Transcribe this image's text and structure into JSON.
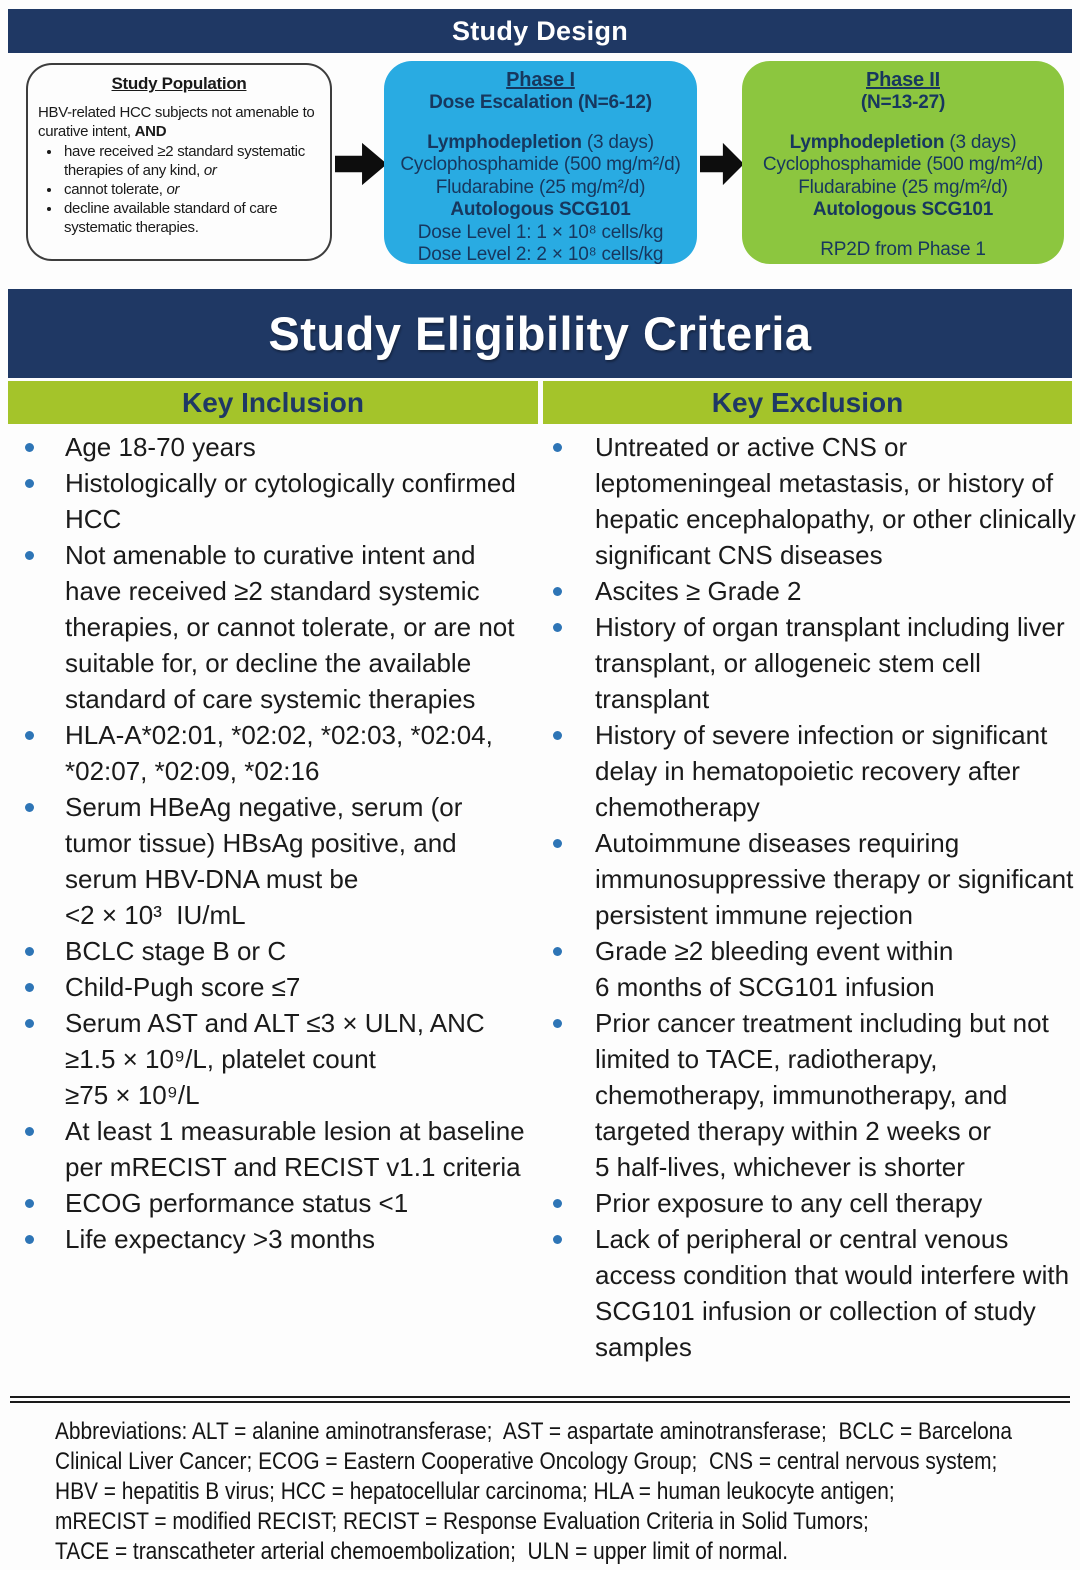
{
  "colors": {
    "navy": "#1F3864",
    "phase1_blue": "#29ABE2",
    "phase2_green": "#8CC63F",
    "header_bar_green": "#A4C42A",
    "bullet_blue": "#2E75B6",
    "box_text_navy": "#17375E",
    "body_text": "#1A1A1A"
  },
  "study_design": {
    "title": "Study Design",
    "population": {
      "title": "Study Population",
      "intro": "HBV-related HCC subjects not amenable to curative intent, ",
      "intro_bold": "AND",
      "bullets": [
        {
          "text": "have received ≥2 standard systematic therapies of any kind, ",
          "italic": "or"
        },
        {
          "text": "cannot tolerate, ",
          "italic": "or"
        },
        {
          "text": "decline available standard of care systematic therapies.",
          "italic": ""
        }
      ]
    },
    "phase1": {
      "title": "Phase I",
      "subtitle": "Dose Escalation (N=6-12)",
      "lymph_bold": "Lymphodepletion",
      "lymph_rest": " (3 days)",
      "cyclo": "Cyclophosphamide (500 mg/m²/d)",
      "fluda": "Fludarabine (25 mg/m²/d)",
      "autologous": "Autologous SCG101",
      "dose1": "Dose Level 1: 1 × 10⁸ cells/kg",
      "dose2": "Dose Level 2: 2 × 10⁸ cells/kg"
    },
    "phase2": {
      "title": "Phase II",
      "subtitle": "(N=13-27)",
      "lymph_bold": "Lymphodepletion",
      "lymph_rest": " (3 days)",
      "cyclo": "Cyclophosphamide (500 mg/m²/d)",
      "fluda": "Fludarabine (25 mg/m²/d)",
      "autologous": "Autologous SCG101",
      "rp2d": "RP2D from Phase 1"
    }
  },
  "eligibility": {
    "title": "Study Eligibility Criteria",
    "inclusion_header": "Key Inclusion",
    "exclusion_header": "Key Exclusion",
    "inclusion": [
      "Age 18-70 years",
      "Histologically or cytologically confirmed HCC",
      "Not amenable to curative intent and have received ≥2 standard systemic therapies, or cannot tolerate, or are not suitable for, or decline the available standard of care systemic therapies",
      "HLA-A*02:01, *02:02, *02:03, *02:04, *02:07, *02:09, *02:16",
      "Serum HBeAg negative, serum (or tumor tissue) HBsAg positive, and serum HBV-DNA must be\n<2 × 10³  IU/mL",
      "BCLC stage B or C",
      "Child-Pugh score ≤7",
      "Serum AST and ALT ≤3 × ULN, ANC\n≥1.5 × 10⁹/L, platelet count\n≥75 × 10⁹/L",
      "At least 1 measurable lesion at baseline per mRECIST and RECIST v1.1 criteria",
      "ECOG performance status <1",
      "Life expectancy >3 months"
    ],
    "exclusion": [
      "Untreated or active CNS or leptomeningeal metastasis, or history of hepatic encephalopathy, or other clinically significant CNS diseases",
      "Ascites ≥ Grade 2",
      "History of organ transplant including liver transplant, or allogeneic stem cell transplant",
      "History of severe infection or significant delay in hematopoietic recovery after chemotherapy",
      "Autoimmune diseases requiring immunosuppressive therapy or significant persistent immune rejection",
      "Grade ≥2 bleeding event within\n6 months of SCG101 infusion",
      "Prior cancer treatment including but not limited to TACE, radiotherapy, chemotherapy, immunotherapy, and targeted therapy within 2 weeks or\n5 half-lives, whichever is shorter",
      "Prior exposure to any cell therapy",
      "Lack of peripheral or central venous access condition that would interfere with SCG101 infusion or collection of study samples"
    ]
  },
  "footer": {
    "lines": [
      "Abbreviations: ALT = alanine aminotransferase;  AST = aspartate aminotransferase;  BCLC = Barcelona",
      "Clinical Liver Cancer; ECOG = Eastern Cooperative Oncology Group;  CNS = central nervous system;",
      "HBV = hepatitis B virus; HCC = hepatocellular carcinoma; HLA = human leukocyte antigen;",
      "mRECIST = modified RECIST; RECIST = Response Evaluation Criteria in Solid Tumors;",
      "TACE = transcatheter arterial chemoembolization;  ULN = upper limit of normal."
    ]
  }
}
